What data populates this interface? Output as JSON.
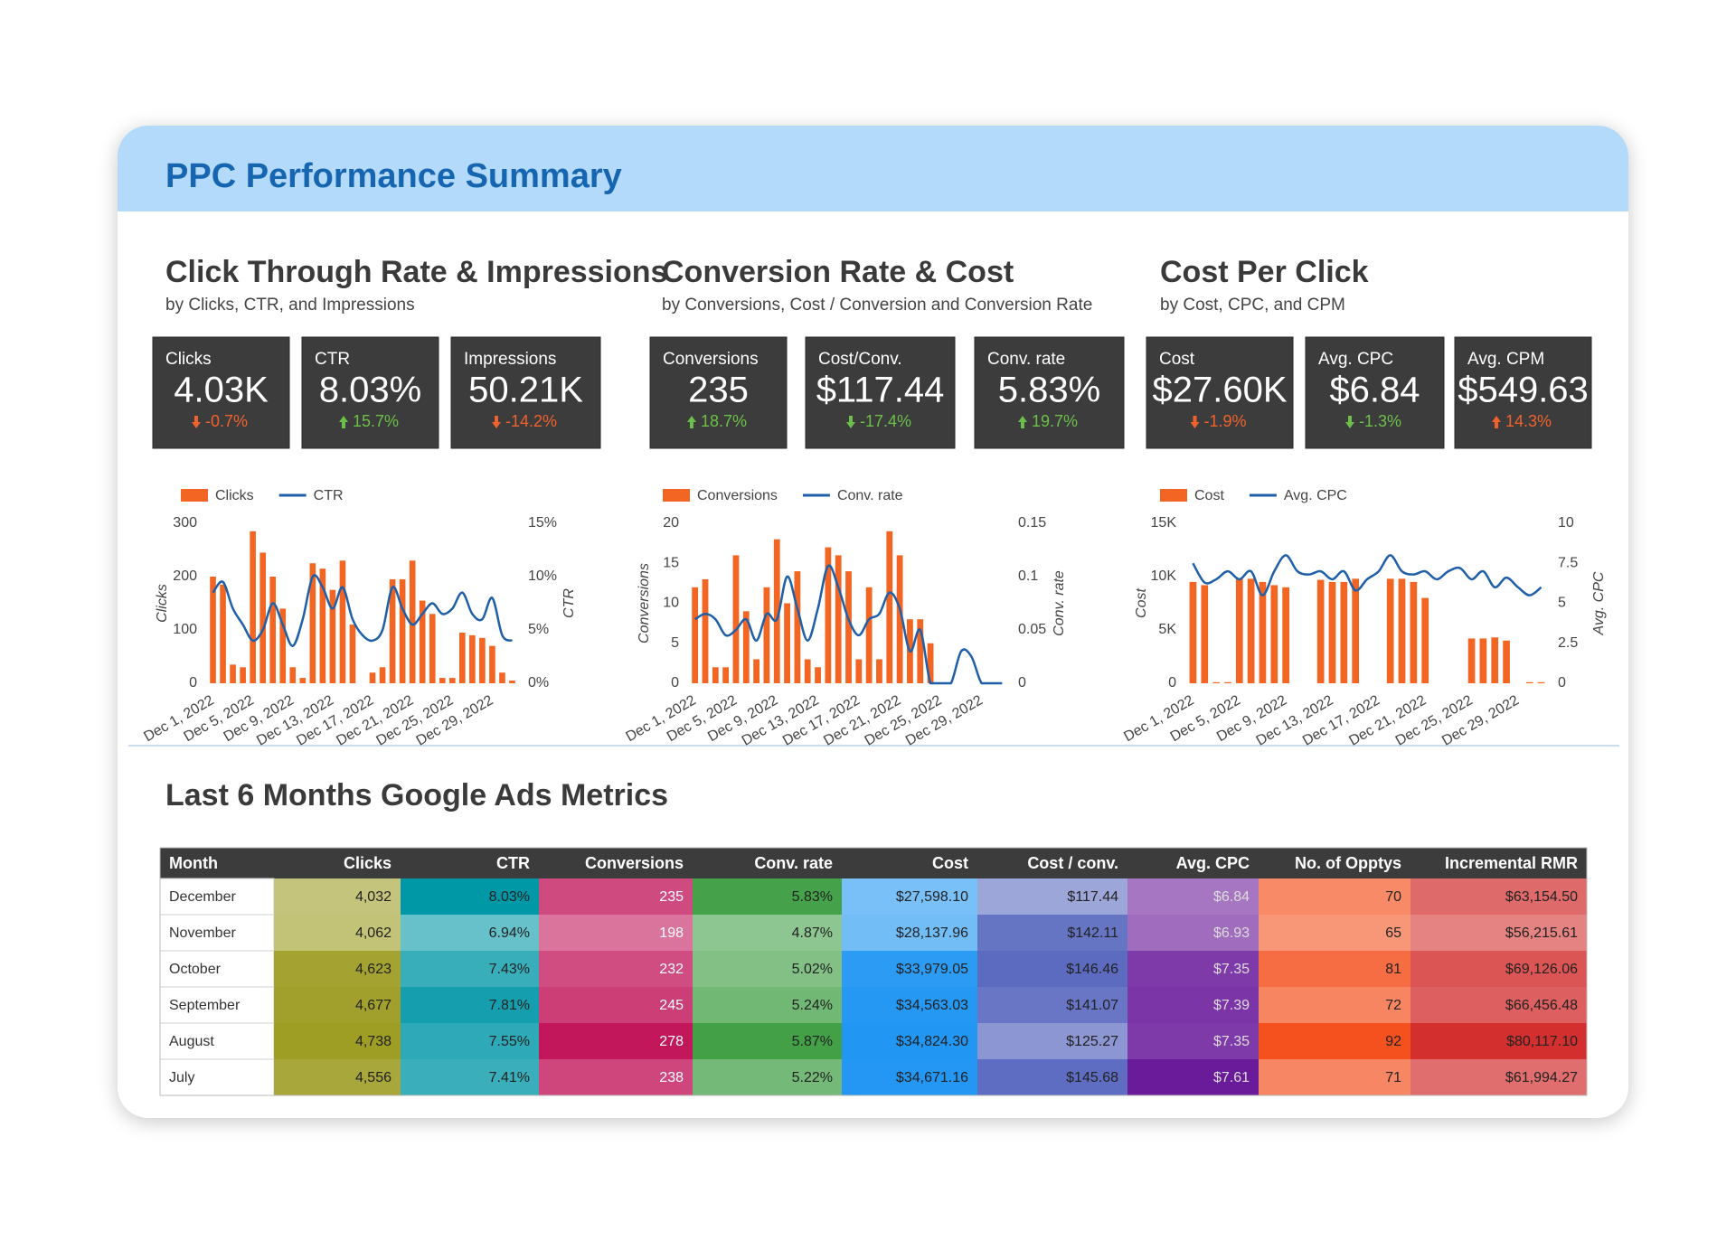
{
  "header": {
    "title": "PPC Performance Summary"
  },
  "sections": [
    {
      "title": "Click Through Rate & Impressions",
      "subtitle": "by Clicks, CTR, and Impressions",
      "scorecards": [
        {
          "label": "Clicks",
          "value": "4.03K",
          "delta": "-0.7%",
          "trend": "down",
          "delta_color": "#f0622d"
        },
        {
          "label": "CTR",
          "value": "8.03%",
          "delta": "15.7%",
          "trend": "up",
          "delta_color": "#6cc04a"
        },
        {
          "label": "Impressions",
          "value": "50.21K",
          "delta": "-14.2%",
          "trend": "down",
          "delta_color": "#f0622d"
        }
      ],
      "chart_data": {
        "type": "combo",
        "categories": [
          "Dec 1, 2022",
          null,
          null,
          null,
          "Dec 5, 2022",
          null,
          null,
          null,
          "Dec 9, 2022",
          null,
          null,
          null,
          "Dec 13, 2022",
          null,
          null,
          null,
          "Dec 17, 2022",
          null,
          null,
          null,
          "Dec 21, 2022",
          null,
          null,
          null,
          "Dec 25, 2022",
          null,
          null,
          null,
          "Dec 29, 2022",
          null,
          null
        ],
        "series": [
          {
            "name": "Clicks",
            "type": "bar",
            "color": "#f26522",
            "values": [
              200,
              185,
              35,
              30,
              285,
              245,
              200,
              140,
              30,
              10,
              225,
              215,
              175,
              230,
              110,
              0,
              20,
              30,
              195,
              195,
              230,
              155,
              130,
              10,
              10,
              95,
              90,
              85,
              70,
              20,
              5
            ]
          },
          {
            "name": "CTR",
            "type": "line",
            "axis": "y2",
            "color": "#1f5fa8",
            "values": [
              8.5,
              9.5,
              7,
              5.5,
              4,
              5,
              7.5,
              5.5,
              3.5,
              6,
              10,
              9,
              7,
              9,
              6,
              4.5,
              4,
              5,
              9,
              7,
              5.5,
              6.5,
              7.5,
              6.5,
              7,
              8.5,
              6.5,
              6,
              8,
              4.5,
              4
            ]
          }
        ],
        "y_label": "Clicks",
        "y2_label": "CTR",
        "ylim": [
          0,
          300
        ],
        "yticks": [
          0,
          100,
          200,
          300
        ],
        "y2lim": [
          0,
          15
        ],
        "y2ticks": [
          {
            "value": 0,
            "label": "0%"
          },
          {
            "value": 5,
            "label": "5%"
          },
          {
            "value": 10,
            "label": "10%"
          },
          {
            "value": 15,
            "label": "15%"
          }
        ]
      }
    },
    {
      "title": "Conversion Rate & Cost",
      "subtitle": "by Conversions, Cost / Conversion and Conversion Rate",
      "scorecards": [
        {
          "label": "Conversions",
          "value": "235",
          "delta": "18.7%",
          "trend": "up",
          "delta_color": "#6cc04a"
        },
        {
          "label": "Cost/Conv.",
          "value": "$117.44",
          "delta": "-17.4%",
          "trend": "down",
          "delta_color": "#6cc04a"
        },
        {
          "label": "Conv. rate",
          "value": "5.83%",
          "delta": "19.7%",
          "trend": "up",
          "delta_color": "#6cc04a"
        }
      ],
      "chart_data": {
        "type": "combo",
        "categories": [
          "Dec 1, 2022",
          null,
          null,
          null,
          "Dec 5, 2022",
          null,
          null,
          null,
          "Dec 9, 2022",
          null,
          null,
          null,
          "Dec 13, 2022",
          null,
          null,
          null,
          "Dec 17, 2022",
          null,
          null,
          null,
          "Dec 21, 2022",
          null,
          null,
          null,
          "Dec 25, 2022",
          null,
          null,
          null,
          "Dec 29, 2022",
          null,
          null
        ],
        "series": [
          {
            "name": "Conversions",
            "type": "bar",
            "color": "#f26522",
            "values": [
              12,
              13,
              2,
              2,
              16,
              9,
              3,
              12,
              18,
              10,
              14,
              3,
              2,
              17,
              16,
              14,
              3,
              12,
              3,
              19,
              16,
              8,
              8,
              5,
              0,
              0,
              0,
              0,
              0,
              0,
              0
            ]
          },
          {
            "name": "Conv. rate",
            "type": "line",
            "axis": "y2",
            "color": "#1f5fa8",
            "values": [
              0.06,
              0.065,
              0.06,
              0.045,
              0.05,
              0.06,
              0.04,
              0.065,
              0.06,
              0.1,
              0.07,
              0.04,
              0.07,
              0.11,
              0.09,
              0.06,
              0.045,
              0.06,
              0.065,
              0.085,
              0.07,
              0.03,
              0.05,
              0,
              0,
              0,
              0.03,
              0.025,
              0,
              0,
              0
            ]
          }
        ],
        "y_label": "Conversions",
        "y2_label": "Conv. rate",
        "ylim": [
          0,
          20
        ],
        "yticks": [
          0,
          5,
          10,
          15,
          20
        ],
        "y2lim": [
          0,
          0.15
        ],
        "y2ticks": [
          0,
          0.05,
          0.1,
          0.15
        ]
      }
    },
    {
      "title": "Cost Per Click",
      "subtitle": "by Cost, CPC, and CPM",
      "scorecards": [
        {
          "label": "Cost",
          "value": "$27.60K",
          "delta": "-1.9%",
          "trend": "down",
          "delta_color": "#f0622d"
        },
        {
          "label": "Avg. CPC",
          "value": "$6.84",
          "delta": "-1.3%",
          "trend": "down",
          "delta_color": "#6cc04a"
        },
        {
          "label": "Avg. CPM",
          "value": "$549.63",
          "delta": "14.3%",
          "trend": "up",
          "delta_color": "#f0622d"
        }
      ],
      "chart_data": {
        "type": "combo",
        "categories": [
          "Dec 1, 2022",
          null,
          null,
          null,
          "Dec 5, 2022",
          null,
          null,
          null,
          "Dec 9, 2022",
          null,
          null,
          null,
          "Dec 13, 2022",
          null,
          null,
          null,
          "Dec 17, 2022",
          null,
          null,
          null,
          "Dec 21, 2022",
          null,
          null,
          null,
          "Dec 25, 2022",
          null,
          null,
          null,
          "Dec 29, 2022",
          null,
          null
        ],
        "series": [
          {
            "name": "Cost",
            "type": "bar",
            "color": "#f26522",
            "values": [
              9500,
              9200,
              100,
              100,
              9800,
              9800,
              9500,
              9200,
              9000,
              0,
              0,
              9700,
              9500,
              9500,
              9800,
              0,
              0,
              9800,
              9800,
              9500,
              8000,
              0,
              0,
              0,
              4200,
              4200,
              4300,
              4000,
              0,
              100,
              100
            ]
          },
          {
            "name": "Avg. CPC",
            "type": "line",
            "axis": "y2",
            "color": "#1f5fa8",
            "values": [
              7.5,
              6.3,
              6.5,
              7,
              6.5,
              7,
              5.5,
              7,
              8,
              7,
              6.8,
              7,
              6.5,
              7,
              5.8,
              6.5,
              7,
              8,
              7,
              6.8,
              7,
              6.5,
              7,
              7.2,
              6.5,
              7,
              6,
              6.6,
              6,
              5.5,
              6
            ]
          }
        ],
        "y_label": "Cost",
        "y2_label": "Avg. CPC",
        "ylim": [
          0,
          15000
        ],
        "yticks": [
          {
            "value": 0,
            "label": "0"
          },
          {
            "value": 5000,
            "label": "5K"
          },
          {
            "value": 10000,
            "label": "10K"
          },
          {
            "value": 15000,
            "label": "15K"
          }
        ],
        "y2lim": [
          0,
          10
        ],
        "y2ticks": [
          0,
          2.5,
          5,
          7.5,
          10
        ]
      }
    }
  ],
  "table": {
    "title": "Last 6 Months Google Ads Metrics",
    "columns": [
      "Month",
      "Clicks",
      "CTR",
      "Conversions",
      "Conv. rate",
      "Cost",
      "Cost / conv.",
      "Avg. CPC",
      "No. of Opptys",
      "Incremental RMR"
    ],
    "column_colors": [
      null,
      "#9e9d24",
      "#0097a7",
      "#c2185b",
      "#43a047",
      "#2196f3",
      "#5c6bc0",
      "#6a1b9a",
      "#f4511e",
      "#d32f2f"
    ],
    "text_colors": [
      "#333",
      "#222",
      "#222",
      "#fff",
      "#222",
      "#222",
      "#222",
      "#ddd",
      "#222",
      "#222"
    ],
    "rows": [
      [
        "December",
        "4,032",
        "8.03%",
        "235",
        "5.83%",
        "$27,598.10",
        "$117.44",
        "$6.84",
        "70",
        "$63,154.50"
      ],
      [
        "November",
        "4,062",
        "6.94%",
        "198",
        "4.87%",
        "$28,137.96",
        "$142.11",
        "$6.93",
        "65",
        "$56,215.61"
      ],
      [
        "October",
        "4,623",
        "7.43%",
        "232",
        "5.02%",
        "$33,979.05",
        "$146.46",
        "$7.35",
        "81",
        "$69,126.06"
      ],
      [
        "September",
        "4,677",
        "7.81%",
        "245",
        "5.24%",
        "$34,563.03",
        "$141.07",
        "$7.39",
        "72",
        "$66,456.48"
      ],
      [
        "August",
        "4,738",
        "7.55%",
        "278",
        "5.87%",
        "$34,824.30",
        "$125.27",
        "$7.35",
        "92",
        "$80,117.10"
      ],
      [
        "July",
        "4,556",
        "7.41%",
        "238",
        "5.22%",
        "$34,671.16",
        "$145.68",
        "$7.61",
        "71",
        "$61,994.27"
      ]
    ]
  }
}
